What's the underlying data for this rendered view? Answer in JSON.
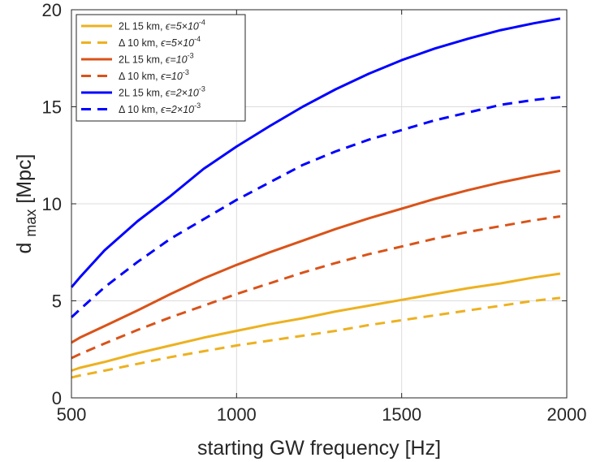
{
  "chart_data": {
    "type": "line",
    "title": "",
    "xlabel": "starting GW frequency [Hz]",
    "ylabel_main": "d",
    "ylabel_sub": "max",
    "ylabel_unit": " [Mpc]",
    "xlim": [
      500,
      2000
    ],
    "ylim": [
      0,
      20
    ],
    "xticks": [
      500,
      1000,
      1500,
      2000
    ],
    "yticks": [
      0,
      5,
      10,
      15,
      20
    ],
    "grid": true,
    "legend_position": "top-left",
    "series": [
      {
        "name": "2L 15 km, ϵ=5×10-4",
        "label_main": "2L 15 km, ",
        "label_eps": "ϵ=5×10",
        "label_exp": "-4",
        "color": "#EDB120",
        "dash": "solid",
        "x": [
          500,
          525,
          600,
          700,
          800,
          900,
          1000,
          1100,
          1200,
          1300,
          1400,
          1500,
          1600,
          1700,
          1800,
          1900,
          1980
        ],
        "y": [
          1.4,
          1.55,
          1.85,
          2.3,
          2.7,
          3.1,
          3.45,
          3.8,
          4.1,
          4.45,
          4.75,
          5.05,
          5.35,
          5.65,
          5.9,
          6.2,
          6.4
        ]
      },
      {
        "name": "Δ 10 km, ϵ=5×10-4",
        "label_main": "Δ 10 km, ",
        "label_eps": "ϵ=5×10",
        "label_exp": "-4",
        "color": "#EDB120",
        "dash": "dashed",
        "x": [
          500,
          525,
          600,
          700,
          800,
          900,
          1000,
          1100,
          1200,
          1300,
          1400,
          1500,
          1600,
          1700,
          1800,
          1900,
          1980
        ],
        "y": [
          1.05,
          1.15,
          1.4,
          1.75,
          2.1,
          2.4,
          2.7,
          2.95,
          3.2,
          3.45,
          3.75,
          4.0,
          4.25,
          4.5,
          4.75,
          5.0,
          5.15
        ]
      },
      {
        "name": "2L 15 km, ϵ=10-3",
        "label_main": "2L 15 km, ",
        "label_eps": "ϵ=10",
        "label_exp": "-3",
        "color": "#D95319",
        "dash": "solid",
        "x": [
          500,
          525,
          600,
          700,
          800,
          850,
          900,
          1000,
          1100,
          1200,
          1300,
          1400,
          1500,
          1600,
          1700,
          1800,
          1900,
          1980
        ],
        "y": [
          2.85,
          3.1,
          3.7,
          4.5,
          5.35,
          5.75,
          6.15,
          6.85,
          7.5,
          8.1,
          8.7,
          9.25,
          9.75,
          10.25,
          10.7,
          11.1,
          11.45,
          11.7
        ]
      },
      {
        "name": "Δ 10 km, ϵ=10-3",
        "label_main": "Δ 10 km, ",
        "label_eps": "ϵ=10",
        "label_exp": "-3",
        "color": "#D95319",
        "dash": "dashed",
        "x": [
          500,
          525,
          600,
          700,
          800,
          900,
          1000,
          1100,
          1200,
          1300,
          1400,
          1500,
          1600,
          1700,
          1800,
          1900,
          1980
        ],
        "y": [
          2.05,
          2.25,
          2.8,
          3.5,
          4.15,
          4.75,
          5.35,
          5.9,
          6.45,
          6.95,
          7.4,
          7.8,
          8.2,
          8.55,
          8.85,
          9.15,
          9.35
        ]
      },
      {
        "name": "2L 15 km, ϵ=2×10-3",
        "label_main": "2L 15 km, ",
        "label_eps": "ϵ=2×10",
        "label_exp": "-3",
        "color": "#0000FF",
        "dash": "solid",
        "x": [
          500,
          525,
          600,
          700,
          800,
          900,
          1000,
          1100,
          1200,
          1300,
          1400,
          1500,
          1600,
          1700,
          1800,
          1900,
          1980
        ],
        "y": [
          5.7,
          6.2,
          7.6,
          9.1,
          10.4,
          11.8,
          12.95,
          14.0,
          15.0,
          15.9,
          16.7,
          17.4,
          18.0,
          18.5,
          18.95,
          19.3,
          19.55
        ]
      },
      {
        "name": "Δ 10 km, ϵ=2×10-3",
        "label_main": "Δ 10 km, ",
        "label_eps": "ϵ=2×10",
        "label_exp": "-3",
        "color": "#0000FF",
        "dash": "dashed",
        "x": [
          500,
          525,
          600,
          700,
          800,
          900,
          1000,
          1100,
          1200,
          1300,
          1400,
          1500,
          1600,
          1700,
          1800,
          1900,
          1980
        ],
        "y": [
          4.15,
          4.55,
          5.7,
          7.0,
          8.2,
          9.2,
          10.2,
          11.1,
          12.0,
          12.7,
          13.3,
          13.8,
          14.3,
          14.7,
          15.1,
          15.35,
          15.5
        ]
      }
    ]
  }
}
